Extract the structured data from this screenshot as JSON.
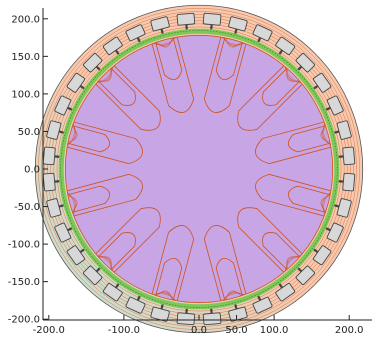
{
  "plot": {
    "type": "motor-cross-section-field-plot",
    "x_ticks": [
      {
        "value": -200,
        "label": "-200.0"
      },
      {
        "value": -100,
        "label": "-100.0"
      },
      {
        "value": 0,
        "label": "0.0"
      },
      {
        "value": 50,
        "label": "50.0"
      },
      {
        "value": 100,
        "label": "100.0"
      },
      {
        "value": 200,
        "label": "200.0"
      }
    ],
    "y_ticks": [
      {
        "value": 200,
        "label": "200.0"
      },
      {
        "value": 150,
        "label": "150.0"
      },
      {
        "value": 100,
        "label": "100.0"
      },
      {
        "value": 50,
        "label": "50.0"
      },
      {
        "value": 0,
        "label": "0.0"
      },
      {
        "value": -50,
        "label": "-50.0"
      },
      {
        "value": -100,
        "label": "-100.0"
      },
      {
        "value": -150,
        "label": "-150.0"
      },
      {
        "value": -200,
        "label": "-200.0"
      }
    ],
    "xlim": [
      -225,
      225
    ],
    "ylim": [
      -225,
      225
    ],
    "stator_outer_radius": 218,
    "stator_inner_radius": 185,
    "rotor_radius": 178,
    "slots": 36,
    "poles": 12,
    "colors": {
      "rotor_fill": "#c8a6e6",
      "field_line": "#d0501c",
      "stator_fill_a": "#b8e6dc",
      "stator_fill_b": "#f7c9ae",
      "slot_fill": "#d8d8d8",
      "slot_stroke": "#444444",
      "air_gap_band": "#7ec85a",
      "axis": "#222222"
    }
  }
}
